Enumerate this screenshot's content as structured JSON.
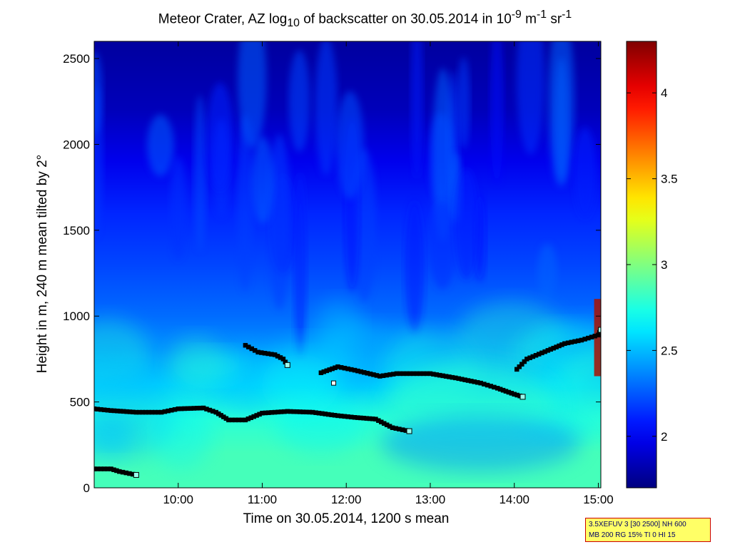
{
  "title": {
    "prefix": "Meteor Crater, AZ log",
    "sub": "10",
    "mid": " of backscatter on 30.05.2014 in 10",
    "sup1": "-9",
    "unit1": " m",
    "sup2": "-1",
    "unit2": " sr",
    "sup3": "-1"
  },
  "info_box": {
    "line1": "3.5XEFUV 3 [30 2500] NH 600",
    "line2": "MB 200 RG 15% TI 0 HI 15"
  },
  "chart_data": {
    "type": "heatmap",
    "xlabel": "Time on 30.05.2014, 1200 s mean",
    "ylabel": "Height in m, 240 m mean tilted by 2°",
    "x_range_hours": [
      9.0,
      15.03
    ],
    "xlim": [
      "09:00",
      "15:02"
    ],
    "ylim": [
      0,
      2600
    ],
    "x_ticks": [
      {
        "value": 10,
        "label": "10:00"
      },
      {
        "value": 11,
        "label": "11:00"
      },
      {
        "value": 12,
        "label": "12:00"
      },
      {
        "value": 13,
        "label": "13:00"
      },
      {
        "value": 14,
        "label": "14:00"
      },
      {
        "value": 15,
        "label": "15:00"
      }
    ],
    "y_ticks": [
      0,
      500,
      1000,
      1500,
      2000,
      2500
    ],
    "colorbar": {
      "colormap": "jet",
      "range": [
        1.7,
        4.3
      ],
      "ticks": [
        2,
        2.5,
        3,
        3.5,
        4
      ],
      "tick_labels": [
        "2",
        "2.5",
        "3",
        "3.5",
        "4"
      ]
    },
    "background_profile": [
      {
        "height": 0,
        "value": 2.85
      },
      {
        "height": 200,
        "value": 2.85
      },
      {
        "height": 400,
        "value": 2.78
      },
      {
        "height": 600,
        "value": 2.55
      },
      {
        "height": 800,
        "value": 2.4
      },
      {
        "height": 1000,
        "value": 2.3
      },
      {
        "height": 1300,
        "value": 2.2
      },
      {
        "height": 1600,
        "value": 2.12
      },
      {
        "height": 1900,
        "value": 1.98
      },
      {
        "height": 2200,
        "value": 1.85
      },
      {
        "height": 2600,
        "value": 1.78
      }
    ],
    "layer_series": [
      {
        "points": [
          [
            9.0,
            460
          ],
          [
            9.2,
            450
          ],
          [
            9.5,
            440
          ],
          [
            9.8,
            440
          ],
          [
            10.0,
            460
          ],
          [
            10.3,
            465
          ],
          [
            10.45,
            440
          ],
          [
            10.6,
            395
          ],
          [
            10.8,
            395
          ],
          [
            11.0,
            435
          ],
          [
            11.3,
            445
          ],
          [
            11.6,
            440
          ],
          [
            11.9,
            420
          ],
          [
            12.1,
            410
          ],
          [
            12.35,
            400
          ],
          [
            12.55,
            350
          ],
          [
            12.75,
            330
          ]
        ]
      },
      {
        "points": [
          [
            9.0,
            110
          ],
          [
            9.2,
            110
          ],
          [
            9.3,
            95
          ],
          [
            9.5,
            75
          ]
        ]
      },
      {
        "points": [
          [
            10.8,
            830
          ],
          [
            10.95,
            790
          ],
          [
            11.15,
            775
          ],
          [
            11.25,
            750
          ],
          [
            11.3,
            715
          ]
        ]
      },
      {
        "points": [
          [
            11.7,
            670
          ],
          [
            11.9,
            705
          ],
          [
            12.1,
            685
          ],
          [
            12.4,
            650
          ],
          [
            12.6,
            665
          ],
          [
            13.0,
            665
          ],
          [
            13.3,
            640
          ],
          [
            13.6,
            610
          ],
          [
            13.8,
            580
          ],
          [
            14.0,
            545
          ],
          [
            14.1,
            530
          ]
        ]
      },
      {
        "points": [
          [
            14.03,
            690
          ],
          [
            14.15,
            750
          ],
          [
            14.4,
            800
          ],
          [
            14.6,
            840
          ],
          [
            14.8,
            860
          ],
          [
            15.0,
            890
          ],
          [
            15.03,
            920
          ]
        ]
      },
      {
        "points": [
          [
            11.85,
            610
          ]
        ]
      }
    ]
  }
}
